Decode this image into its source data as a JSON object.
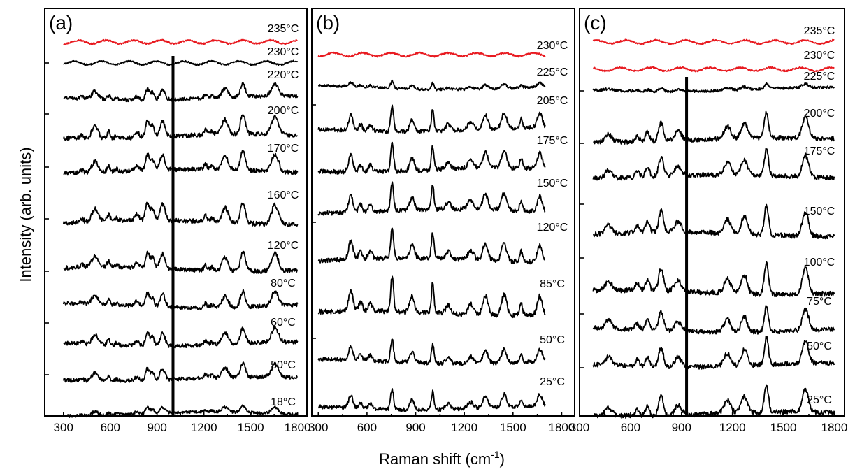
{
  "figure": {
    "ylabel": "Intensity (arb. units)",
    "xlabel": "Raman shift (cm",
    "xlabel_sup": "-1",
    "xlabel_close": ")"
  },
  "colors": {
    "trace_default": "#000000",
    "trace_highlight": "#e8191f"
  },
  "chart_data": [
    {
      "type": "line",
      "panel_label": "(a)",
      "x_range": [
        300,
        1800
      ],
      "xticks": [
        300,
        600,
        900,
        1200,
        1500,
        1800
      ],
      "xlim": [
        180,
        1860
      ],
      "y_axis": "stacked offset traces, no numeric tick labels",
      "spectrum_bands_cm-1": [
        418,
        502,
        590,
        641,
        770,
        838,
        870,
        935,
        1002,
        1210,
        1335,
        1450,
        1655
      ],
      "series": [
        {
          "label": "235°C",
          "color": "#e8191f",
          "feature": "featureless"
        },
        {
          "label": "230°C",
          "color": "#000000",
          "feature": "weak peak at 1002"
        },
        {
          "label": "220°C",
          "color": "#000000"
        },
        {
          "label": "200°C",
          "color": "#000000"
        },
        {
          "label": "170°C",
          "color": "#000000"
        },
        {
          "label": "160°C",
          "color": "#000000"
        },
        {
          "label": "120°C",
          "color": "#000000"
        },
        {
          "label": "80°C",
          "color": "#000000"
        },
        {
          "label": "60°C",
          "color": "#000000"
        },
        {
          "label": "50°C",
          "color": "#000000"
        },
        {
          "label": "18°C",
          "color": "#000000"
        }
      ]
    },
    {
      "type": "line",
      "panel_label": "(b)",
      "x_range": [
        300,
        1700
      ],
      "xticks": [
        300,
        600,
        900,
        1200,
        1500,
        1800
      ],
      "xlim": [
        260,
        1880
      ],
      "y_axis": "stacked offset traces, no numeric tick labels",
      "spectrum_bands_cm-1": [
        500,
        560,
        620,
        755,
        878,
        1005,
        1100,
        1240,
        1330,
        1445,
        1550,
        1665
      ],
      "series": [
        {
          "label": "230°C",
          "color": "#e8191f",
          "feature": "featureless"
        },
        {
          "label": "225°C",
          "color": "#000000"
        },
        {
          "label": "205°C",
          "color": "#000000"
        },
        {
          "label": "175°C",
          "color": "#000000"
        },
        {
          "label": "150°C",
          "color": "#000000"
        },
        {
          "label": "120°C",
          "color": "#000000"
        },
        {
          "label": "85°C",
          "color": "#000000"
        },
        {
          "label": "50°C",
          "color": "#000000"
        },
        {
          "label": "25°C",
          "color": "#000000"
        }
      ]
    },
    {
      "type": "line",
      "panel_label": "(c)",
      "x_range": [
        380,
        1800
      ],
      "xticks": [
        300,
        600,
        900,
        1200,
        1500,
        1800
      ],
      "xlim": [
        300,
        1860
      ],
      "y_axis": "stacked offset traces, no numeric tick labels",
      "spectrum_bands_cm-1": [
        470,
        640,
        700,
        780,
        930,
        1170,
        1270,
        1400,
        1630
      ],
      "series": [
        {
          "label": "235°C",
          "color": "#e8191f",
          "feature": "featureless"
        },
        {
          "label": "230°C",
          "color": "#e8191f",
          "feature": "featureless"
        },
        {
          "label": "225°C",
          "color": "#000000"
        },
        {
          "label": "200°C",
          "color": "#000000"
        },
        {
          "label": "175°C",
          "color": "#000000"
        },
        {
          "label": "150°C",
          "color": "#000000"
        },
        {
          "label": "100°C",
          "color": "#000000"
        },
        {
          "label": "75°C",
          "color": "#000000"
        },
        {
          "label": "50°C",
          "color": "#000000"
        },
        {
          "label": "25°C",
          "color": "#000000"
        }
      ]
    }
  ]
}
